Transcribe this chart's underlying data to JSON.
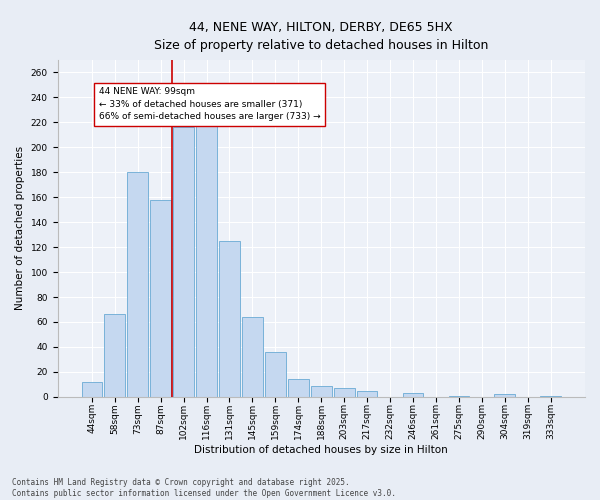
{
  "title_line1": "44, NENE WAY, HILTON, DERBY, DE65 5HX",
  "title_line2": "Size of property relative to detached houses in Hilton",
  "xlabel": "Distribution of detached houses by size in Hilton",
  "ylabel": "Number of detached properties",
  "categories": [
    "44sqm",
    "58sqm",
    "73sqm",
    "87sqm",
    "102sqm",
    "116sqm",
    "131sqm",
    "145sqm",
    "159sqm",
    "174sqm",
    "188sqm",
    "203sqm",
    "217sqm",
    "232sqm",
    "246sqm",
    "261sqm",
    "275sqm",
    "290sqm",
    "304sqm",
    "319sqm",
    "333sqm"
  ],
  "values": [
    12,
    66,
    180,
    158,
    216,
    218,
    125,
    64,
    36,
    14,
    9,
    7,
    5,
    0,
    3,
    0,
    1,
    0,
    2,
    0,
    1
  ],
  "bar_color": "#c5d8f0",
  "bar_edge_color": "#6aaad4",
  "vline_color": "#cc0000",
  "vline_index": 3.5,
  "annotation_text": "44 NENE WAY: 99sqm\n← 33% of detached houses are smaller (371)\n66% of semi-detached houses are larger (733) →",
  "annotation_box_color": "white",
  "annotation_box_edge_color": "#cc0000",
  "ylim": [
    0,
    270
  ],
  "yticks": [
    0,
    20,
    40,
    60,
    80,
    100,
    120,
    140,
    160,
    180,
    200,
    220,
    240,
    260
  ],
  "footer_line1": "Contains HM Land Registry data © Crown copyright and database right 2025.",
  "footer_line2": "Contains public sector information licensed under the Open Government Licence v3.0.",
  "background_color": "#e8edf5",
  "plot_background_color": "#edf1f8",
  "title_fontsize": 9,
  "axis_label_fontsize": 7.5,
  "tick_fontsize": 6.5,
  "annotation_fontsize": 6.5,
  "footer_fontsize": 5.5
}
